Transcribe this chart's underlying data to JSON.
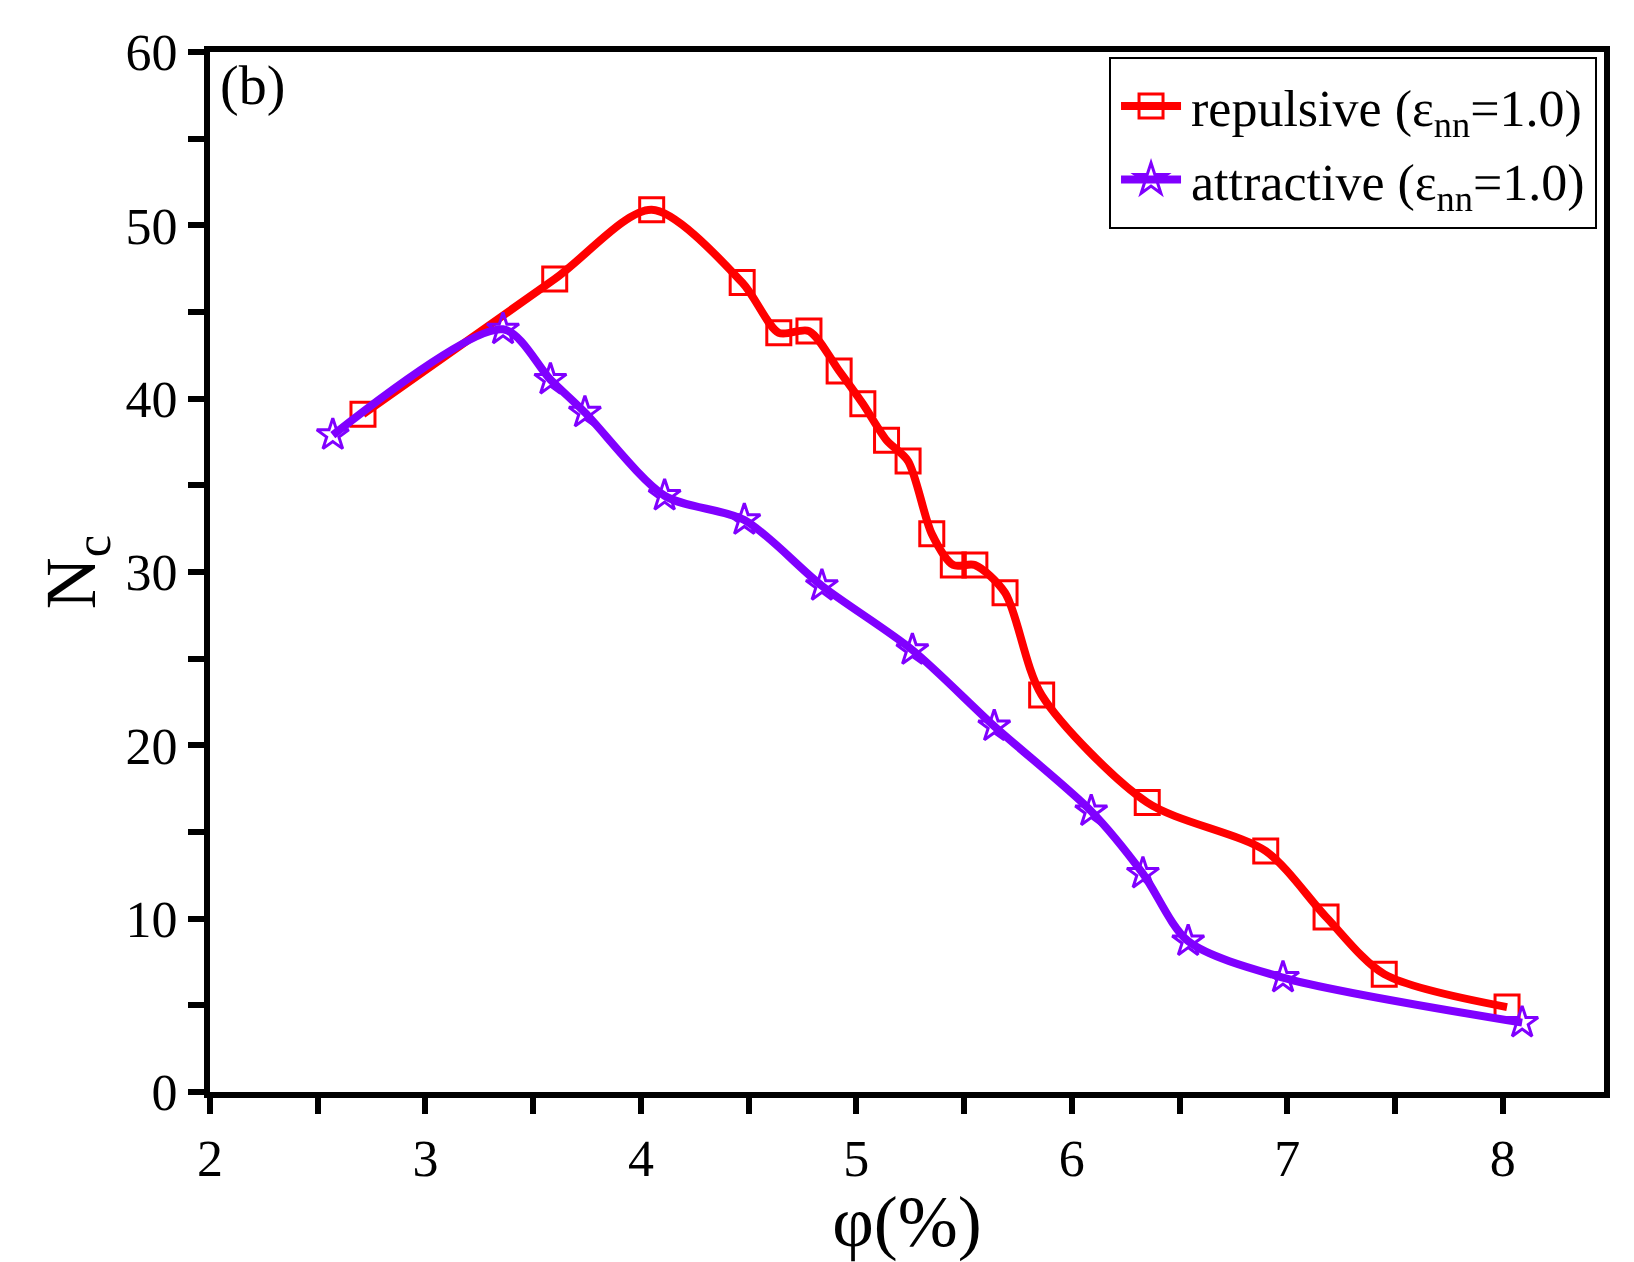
{
  "chart_data": {
    "type": "line",
    "xlabel": "φ(%)",
    "ylabel": "N$_{c}$",
    "annotations": [
      "(b)"
    ],
    "xlim": [
      2,
      8.47
    ],
    "ylim": [
      0,
      60
    ],
    "xticks": [
      2,
      {
        "value": 2.5,
        "label": null
      },
      3,
      {
        "value": 3.5,
        "label": null
      },
      4,
      {
        "value": 4.5,
        "label": null
      },
      5,
      {
        "value": 5.5,
        "label": null
      },
      6,
      {
        "value": 6.5,
        "label": null
      },
      7,
      {
        "value": 7.5,
        "label": null
      },
      8
    ],
    "yticks": [
      0,
      {
        "value": 5,
        "label": null
      },
      10,
      {
        "value": 15,
        "label": null
      },
      20,
      {
        "value": 25,
        "label": null
      },
      30,
      {
        "value": 35,
        "label": null
      },
      40,
      {
        "value": 45,
        "label": null
      },
      50,
      {
        "value": 55,
        "label": null
      },
      60
    ],
    "legend": "top right",
    "series": [
      {
        "name": "repulsive (ε$_{nn}$=1.0)",
        "color": "#ff0000",
        "marker": "square",
        "x": [
          2.71,
          3.6,
          4.05,
          4.47,
          4.64,
          4.78,
          4.92,
          5.03,
          5.14,
          5.24,
          5.35,
          5.45,
          5.55,
          5.69,
          5.86,
          6.35,
          6.9,
          7.18,
          7.45,
          8.02
        ],
        "values": [
          39.1,
          46.9,
          50.9,
          46.7,
          43.8,
          43.9,
          41.6,
          39.7,
          37.6,
          36.4,
          32.2,
          30.4,
          30.4,
          28.8,
          22.9,
          16.7,
          13.9,
          10.1,
          6.8,
          4.9
        ]
      },
      {
        "name": "attractive (ε$_{nn}$=1.0)",
        "color": "#8000ff",
        "marker": "star",
        "x": [
          2.57,
          3.36,
          3.58,
          3.74,
          4.11,
          4.48,
          4.84,
          5.26,
          5.64,
          6.09,
          6.33,
          6.54,
          6.98,
          8.09
        ],
        "values": [
          37.9,
          44.0,
          41.1,
          39.2,
          34.4,
          33.0,
          29.2,
          25.5,
          21.1,
          16.2,
          12.6,
          8.7,
          6.6,
          4.0
        ]
      }
    ]
  }
}
